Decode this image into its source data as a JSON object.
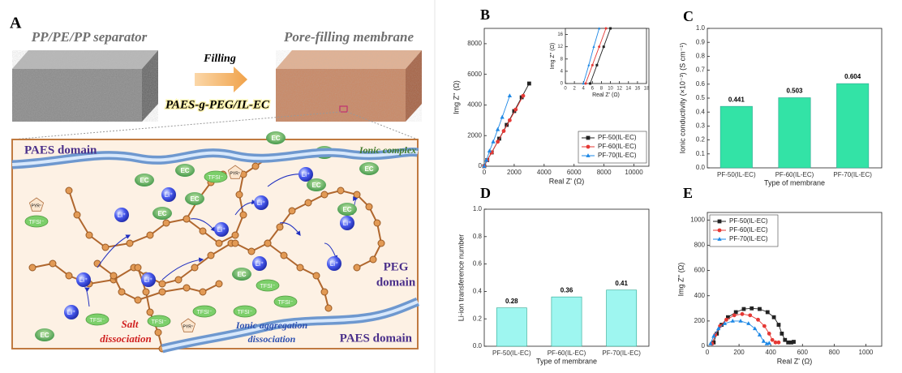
{
  "schematic": {
    "panel_label": "A",
    "top_left": "PP/PE/PP separator",
    "top_right": "Pore-filling membrane",
    "arrow_top": "Filling",
    "arrow_bottom": "PAES-g-PEG/IL-EC",
    "domain_top": "PAES domain",
    "ionic_complex": "Ionic complex",
    "peg_domain": [
      "PEG",
      "domain"
    ],
    "domain_bottom": "PAES domain",
    "salt_dissociation": [
      "Salt",
      "dissociation"
    ],
    "aggregation": [
      "Ionic aggregation",
      "dissociation"
    ],
    "li": [
      "Li⁺",
      "Li⁺",
      "Li⁺",
      "Li⁺",
      "Li⁺",
      "Li⁺",
      "Li⁺",
      "Li⁺",
      "Li⁺",
      "Li⁺",
      "Li⁺"
    ],
    "ec": [
      "EC",
      "EC",
      "EC",
      "EC",
      "EC",
      "EC",
      "EC",
      "EC",
      "EC",
      "EC",
      "EC"
    ],
    "tfsi": [
      "TFSI⁻",
      "TFSI⁻",
      "TFSI⁻",
      "TFSI⁻",
      "TFSI⁻",
      "TFSI⁻",
      "TFSI⁻",
      "TFSI⁻"
    ],
    "pyr": [
      "PYR⁺",
      "PYR⁺",
      "PYR⁺"
    ]
  },
  "chart_data": [
    {
      "type": "scatter",
      "panel_label": "B",
      "x_label": "Real Z' (Ω)",
      "y_label": "Img Z'' (Ω)",
      "xlim": [
        0,
        11000
      ],
      "xticks": [
        0,
        2000,
        4000,
        6000,
        8000,
        10000
      ],
      "ylim": [
        0,
        9000
      ],
      "yticks": [
        0,
        2000,
        4000,
        6000,
        8000
      ],
      "legend": "lower right",
      "series": [
        {
          "name": "PF-50(IL-EC)",
          "color": "#222222",
          "marker": "square",
          "x": [
            0,
            200,
            500,
            1000,
            1500,
            2000,
            2500,
            3000
          ],
          "y": [
            0,
            400,
            900,
            1800,
            2700,
            3600,
            4500,
            5400
          ]
        },
        {
          "name": "PF-60(IL-EC)",
          "color": "#e53935",
          "marker": "circle",
          "x": [
            0,
            200,
            500,
            900,
            1300,
            1700,
            2100,
            2600
          ],
          "y": [
            0,
            400,
            900,
            1600,
            2300,
            3000,
            3700,
            4600
          ]
        },
        {
          "name": "PF-70(IL-EC)",
          "color": "#1e88e5",
          "marker": "triangle",
          "x": [
            0,
            150,
            350,
            600,
            900,
            1200,
            1700
          ],
          "y": [
            0,
            400,
            1000,
            1600,
            2400,
            3200,
            4600
          ]
        }
      ]
    },
    {
      "type": "scatter",
      "x_label": "Real Z' (Ω)",
      "y_label": "Img Z'' (Ω)",
      "xlim": [
        0,
        18
      ],
      "xticks": [
        0,
        2,
        4,
        6,
        8,
        10,
        12,
        14,
        16,
        18
      ],
      "ylim": [
        0,
        18
      ],
      "yticks": [
        0,
        4,
        8,
        12,
        16
      ],
      "series": [
        {
          "name": "PF-50(IL-EC)",
          "color": "#222222",
          "marker": "square",
          "x": [
            5.5,
            7,
            8.5,
            10
          ],
          "y": [
            0,
            6,
            12,
            18
          ]
        },
        {
          "name": "PF-60(IL-EC)",
          "color": "#e53935",
          "marker": "circle",
          "x": [
            4.5,
            6,
            7.5,
            9
          ],
          "y": [
            0,
            6,
            12,
            18
          ]
        },
        {
          "name": "PF-70(IL-EC)",
          "color": "#1e88e5",
          "marker": "triangle",
          "x": [
            4,
            5.2,
            6.3,
            7.5
          ],
          "y": [
            0,
            6,
            12,
            18
          ]
        }
      ]
    },
    {
      "type": "bar",
      "panel_label": "C",
      "x_label": "Type of membrane",
      "y_label": "Ionic conductivity (×10⁻³) (S cm⁻¹)",
      "categories": [
        "PF-50(IL-EC)",
        "PF-60(IL-EC)",
        "PF-70(IL-EC)"
      ],
      "values": [
        0.441,
        0.503,
        0.604
      ],
      "color": "#33e3a6",
      "ylim": [
        0,
        1.0
      ],
      "yticks": [
        {
          "value": 0,
          "label": "0.0"
        },
        0.1,
        0.2,
        0.3,
        0.4,
        0.5,
        0.6,
        0.7,
        0.8,
        0.9,
        {
          "value": 1,
          "label": "1.0"
        }
      ]
    },
    {
      "type": "bar",
      "panel_label": "D",
      "x_label": "Type of membrane",
      "y_label": "Li-ion transference number",
      "categories": [
        "PF-50(IL-EC)",
        "PF-60(IL-EC)",
        "PF-70(IL-EC)"
      ],
      "values": [
        0.28,
        0.36,
        0.41
      ],
      "color": "#9ef6f0",
      "ylim": [
        0,
        1.0
      ],
      "yticks": [
        {
          "value": 0,
          "label": "0.0"
        },
        0.2,
        0.4,
        0.6,
        0.8,
        {
          "value": 1,
          "label": "1.0"
        }
      ]
    },
    {
      "type": "scatter",
      "panel_label": "E",
      "x_label": "Real Z' (Ω)",
      "y_label": "Img Z'' (Ω)",
      "xlim": [
        0,
        1100
      ],
      "xticks": [
        0,
        200,
        400,
        600,
        800,
        1000
      ],
      "ylim": [
        0,
        1060
      ],
      "yticks": [
        0,
        200,
        400,
        600,
        800,
        1000
      ],
      "legend": "upper left",
      "series": [
        {
          "name": "PF-50(IL-EC)",
          "color": "#222222",
          "marker": "square",
          "x": [
            40,
            60,
            90,
            130,
            180,
            230,
            280,
            330,
            380,
            420,
            450,
            470,
            490,
            510,
            530,
            545
          ],
          "y": [
            30,
            100,
            170,
            230,
            270,
            295,
            300,
            295,
            270,
            230,
            170,
            100,
            50,
            30,
            30,
            35
          ]
        },
        {
          "name": "PF-60(IL-EC)",
          "color": "#e53935",
          "marker": "circle",
          "x": [
            30,
            50,
            80,
            120,
            170,
            220,
            270,
            320,
            360,
            390,
            410,
            430,
            450
          ],
          "y": [
            20,
            90,
            160,
            210,
            245,
            255,
            245,
            210,
            160,
            100,
            50,
            30,
            30
          ]
        },
        {
          "name": "PF-70(IL-EC)",
          "color": "#1e88e5",
          "marker": "triangle",
          "x": [
            20,
            40,
            70,
            110,
            160,
            210,
            260,
            300,
            330,
            355,
            375,
            390
          ],
          "y": [
            20,
            80,
            140,
            180,
            200,
            200,
            180,
            140,
            90,
            40,
            20,
            25
          ]
        }
      ]
    }
  ]
}
